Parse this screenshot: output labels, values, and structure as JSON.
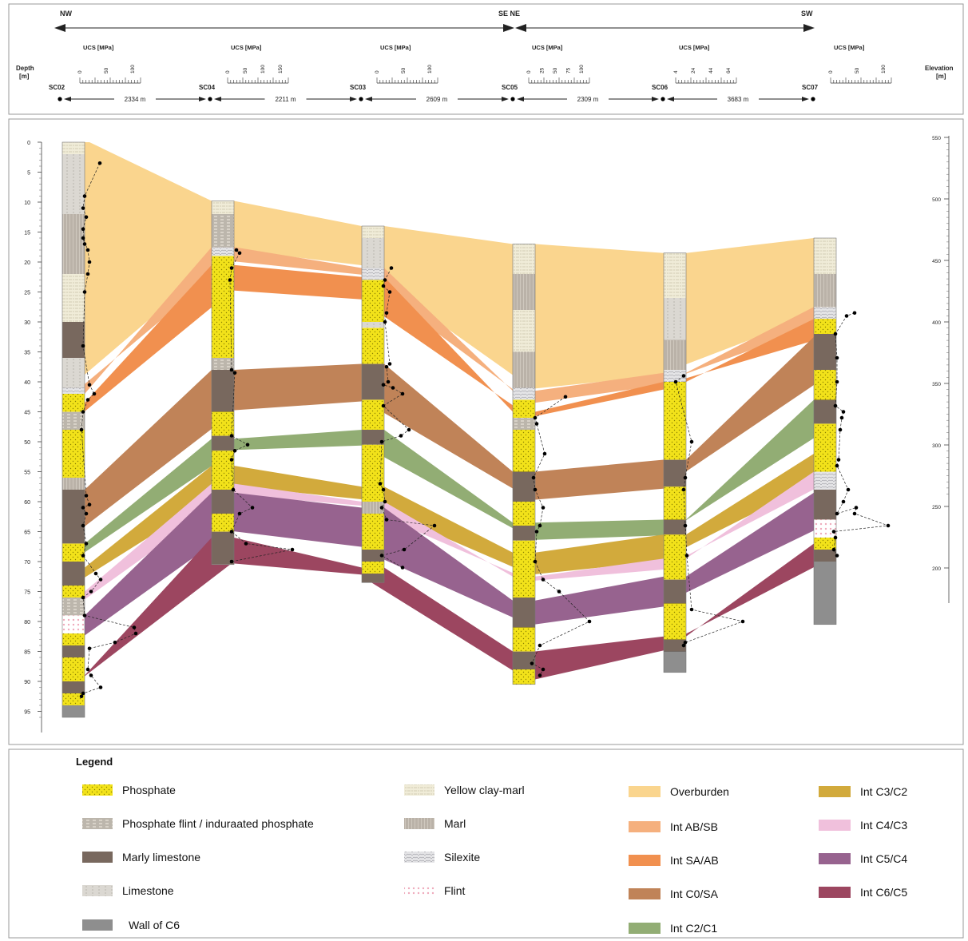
{
  "directions": {
    "nw": "NW",
    "se_ne": "SE NE",
    "sw": "SW"
  },
  "header": {
    "depth_label": [
      "Depth",
      "[m]"
    ],
    "elevation_label": [
      "Elevation",
      "[m]"
    ],
    "ucs_label": "UCS [MPa]"
  },
  "boreholes": [
    {
      "id": "SC02",
      "ucs_ticks": [
        "0",
        "50",
        "100"
      ]
    },
    {
      "id": "SC04",
      "ucs_ticks": [
        "0",
        "50",
        "100",
        "150"
      ]
    },
    {
      "id": "SC03",
      "ucs_ticks": [
        "0",
        "50",
        "100"
      ]
    },
    {
      "id": "SC05",
      "ucs_ticks": [
        "0",
        "25",
        "50",
        "75",
        "100"
      ]
    },
    {
      "id": "SC06",
      "ucs_ticks": [
        "4",
        "24",
        "44",
        "64"
      ]
    },
    {
      "id": "SC07",
      "ucs_ticks": [
        "0",
        "50",
        "100"
      ]
    }
  ],
  "distances": [
    "2334 m",
    "2211 m",
    "2609 m",
    "2309 m",
    "3683 m"
  ],
  "depth_axis": {
    "ticks": [
      "0",
      "5",
      "10",
      "15",
      "20",
      "25",
      "30",
      "35",
      "40",
      "45",
      "50",
      "55",
      "60",
      "65",
      "70",
      "75",
      "80",
      "85",
      "90",
      "95"
    ]
  },
  "elevation_axis": {
    "ticks": [
      "550",
      "500",
      "450",
      "400",
      "350",
      "300",
      "250",
      "200"
    ]
  },
  "intervals": [
    {
      "name": "Overburden",
      "color": "#fad58e"
    },
    {
      "name": "Int AB/SB",
      "color": "#f5b07e"
    },
    {
      "name": "Int SA/AB",
      "color": "#f1904f"
    },
    {
      "name": "Int C0/SA",
      "color": "#c08358"
    },
    {
      "name": "Int C2/C1",
      "color": "#92ad74"
    },
    {
      "name": "Int C3/C2",
      "color": "#d2aa3c"
    },
    {
      "name": "Int C4/C3",
      "color": "#f0c0dc"
    },
    {
      "name": "Int C5/C4",
      "color": "#97638f"
    },
    {
      "name": "Int C6/C5",
      "color": "#9c4660"
    }
  ],
  "legend": {
    "title": "Legend",
    "lithology": [
      {
        "label": "Phosphate",
        "pattern": "phosphate"
      },
      {
        "label": "Phosphate flint / induraated phosphate",
        "pattern": "flintphos"
      },
      {
        "label": "Marly limestone",
        "pattern": "marlylime"
      },
      {
        "label": "Limestone",
        "pattern": "limestone"
      },
      {
        "label": "Wall of C6",
        "pattern": "wall"
      },
      {
        "label": "Yellow clay-marl",
        "pattern": "claymarl"
      },
      {
        "label": "Marl",
        "pattern": "marl"
      },
      {
        "label": "Silexite",
        "pattern": "silexite"
      },
      {
        "label": "Flint",
        "pattern": "flint"
      }
    ]
  }
}
